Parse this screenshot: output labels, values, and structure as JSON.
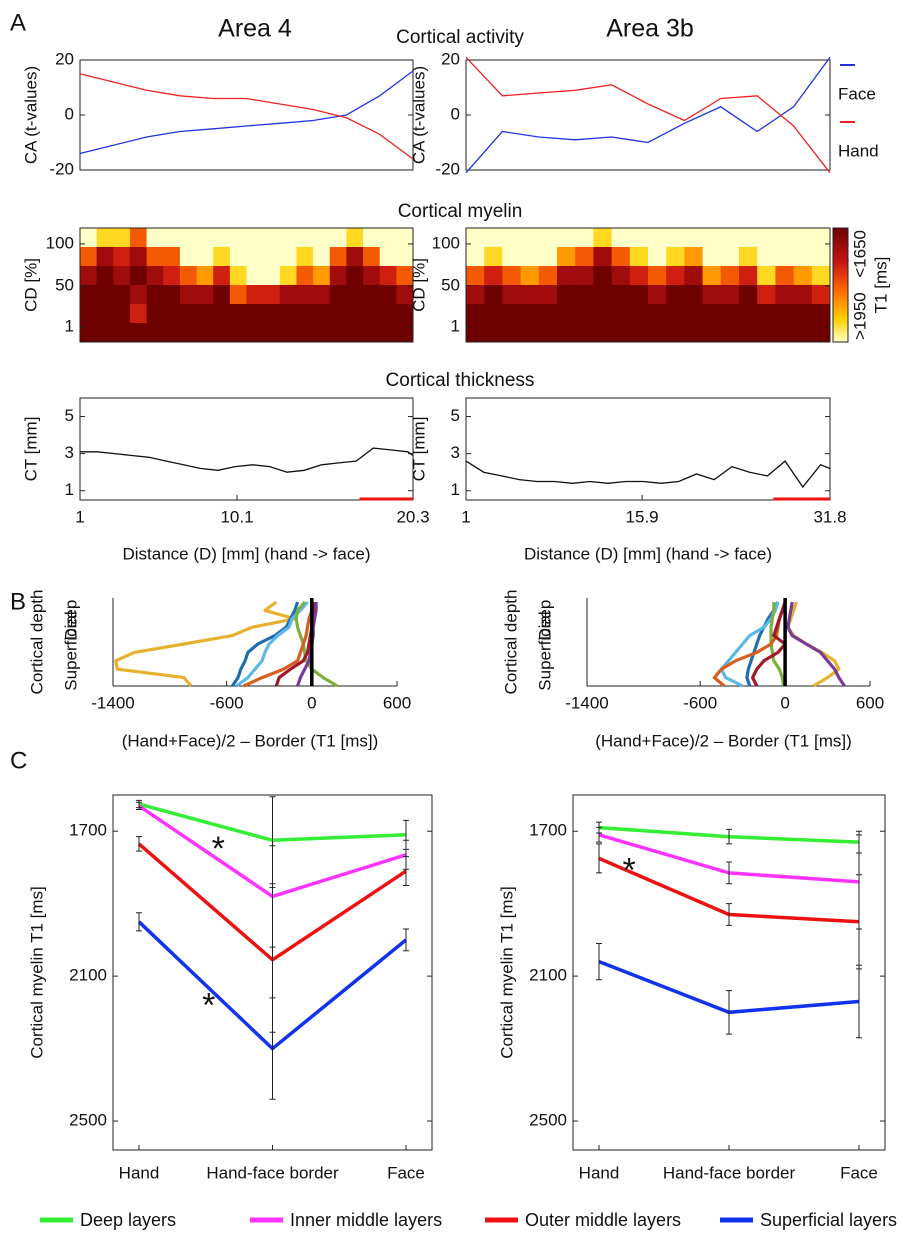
{
  "figure": {
    "panel_labels": [
      "A",
      "B",
      "C"
    ],
    "column_titles": [
      "Area 4",
      "Area 3b"
    ],
    "row_titles": [
      "Cortical activity",
      "Cortical myelin",
      "Cortical thickness"
    ]
  },
  "chart_data": [
    {
      "type": "line",
      "ylabel": "CA (t-values)",
      "ylim": [
        -20,
        20
      ],
      "yticks": [
        -20,
        0,
        20
      ],
      "series": [
        {
          "color": "#2233dd",
          "values": [
            -14,
            -11,
            -8,
            -6,
            -5,
            -4,
            -3,
            -2,
            0,
            7,
            16
          ]
        },
        {
          "color": "#ee2222",
          "values": [
            15,
            12,
            9,
            7,
            6,
            6,
            4,
            2,
            -1,
            -7,
            -16
          ]
        }
      ]
    },
    {
      "type": "line",
      "ylabel": "CA (t-values)",
      "ylim": [
        -20,
        20
      ],
      "yticks": [
        -20,
        0,
        20
      ],
      "legend": "right",
      "series": [
        {
          "name": "Face",
          "color": "#2233dd",
          "values": [
            -21,
            -6,
            -8,
            -9,
            -8,
            -10,
            -3,
            3,
            -6,
            3,
            21
          ]
        },
        {
          "name": "Hand",
          "color": "#ee2222",
          "values": [
            21,
            7,
            8,
            9,
            11,
            4,
            -2,
            6,
            7,
            -4,
            -21
          ]
        }
      ]
    },
    {
      "type": "heatmap",
      "ylabel": "CD [%]",
      "ylim": [
        -17,
        119
      ],
      "yticks": [
        1,
        50,
        100
      ],
      "zlim": [
        1650,
        1950
      ],
      "rows": [
        [
          2000,
          1900,
          1900,
          1800,
          2000,
          2000,
          2000,
          2000,
          2000,
          2000,
          2000,
          2000,
          2000,
          2000,
          2000,
          2000,
          1900,
          2000,
          2000,
          2000
        ],
        [
          1800,
          1700,
          1750,
          1700,
          1800,
          1800,
          2000,
          2000,
          1900,
          2000,
          2000,
          2000,
          2000,
          1900,
          2000,
          1800,
          1700,
          1800,
          1950,
          2000
        ],
        [
          1700,
          1650,
          1700,
          1650,
          1700,
          1750,
          1800,
          1850,
          1750,
          1900,
          1950,
          1950,
          1900,
          1800,
          1850,
          1700,
          1650,
          1700,
          1750,
          1800
        ],
        [
          1650,
          1600,
          1650,
          1700,
          1650,
          1650,
          1700,
          1700,
          1650,
          1800,
          1750,
          1750,
          1700,
          1700,
          1700,
          1650,
          1600,
          1650,
          1650,
          1700
        ],
        [
          1600,
          1600,
          1600,
          1750,
          1600,
          1600,
          1650,
          1650,
          1600,
          1650,
          1650,
          1650,
          1650,
          1650,
          1650,
          1600,
          1600,
          1600,
          1650,
          1650
        ],
        [
          1600,
          1600,
          1600,
          1600,
          1600,
          1600,
          1600,
          1600,
          1600,
          1600,
          1600,
          1600,
          1600,
          1600,
          1600,
          1600,
          1600,
          1600,
          1600,
          1600
        ]
      ]
    },
    {
      "type": "heatmap",
      "ylabel": "CD [%]",
      "ylim": [
        -17,
        119
      ],
      "yticks": [
        1,
        50,
        100
      ],
      "zlim": [
        1650,
        1950
      ],
      "colorbar": {
        "ticks": [
          {
            "value": 1650,
            "label": "<1650"
          },
          {
            "value": 1950,
            "label": ">1950"
          }
        ],
        "label": "T1 [ms]"
      },
      "rows": [
        [
          2000,
          2000,
          2000,
          2000,
          2000,
          2000,
          2000,
          1900,
          2000,
          2000,
          2000,
          2000,
          2000,
          2000,
          2000,
          2000,
          2000,
          2000,
          2000,
          2000
        ],
        [
          2000,
          1900,
          1950,
          2000,
          2000,
          1850,
          1800,
          1700,
          1800,
          1900,
          1950,
          1900,
          1850,
          2000,
          1950,
          1900,
          2000,
          1950,
          1950,
          2000
        ],
        [
          1800,
          1750,
          1800,
          1850,
          1800,
          1700,
          1700,
          1650,
          1700,
          1750,
          1800,
          1750,
          1700,
          1850,
          1800,
          1750,
          1900,
          1800,
          1850,
          1900
        ],
        [
          1700,
          1650,
          1700,
          1700,
          1700,
          1650,
          1650,
          1600,
          1650,
          1650,
          1700,
          1650,
          1650,
          1700,
          1700,
          1650,
          1750,
          1700,
          1700,
          1750
        ],
        [
          1650,
          1600,
          1650,
          1650,
          1600,
          1600,
          1600,
          1600,
          1600,
          1600,
          1650,
          1600,
          1600,
          1650,
          1650,
          1600,
          1650,
          1650,
          1650,
          1650
        ],
        [
          1600,
          1600,
          1600,
          1600,
          1600,
          1600,
          1600,
          1600,
          1600,
          1600,
          1600,
          1600,
          1600,
          1600,
          1600,
          1600,
          1600,
          1600,
          1600,
          1600
        ]
      ]
    },
    {
      "type": "line",
      "ylabel": "CT [mm]",
      "xlabel": "Distance (D) [mm] (hand -> face)",
      "xlim": [
        1,
        20.3
      ],
      "xticks": [
        1,
        10.1,
        20.3
      ],
      "ylim": [
        0.5,
        6
      ],
      "yticks": [
        1,
        3,
        5
      ],
      "highlight": [
        17.2,
        20.3
      ],
      "highlight_color": "#ee1111",
      "x": [
        1,
        2,
        3,
        4,
        5,
        6,
        7,
        8,
        9,
        10,
        11,
        12,
        13,
        14,
        15,
        16,
        17,
        18,
        19,
        20,
        20.3
      ],
      "series": [
        {
          "color": "#111111",
          "values": [
            3.1,
            3.1,
            3.0,
            2.9,
            2.8,
            2.6,
            2.4,
            2.2,
            2.1,
            2.3,
            2.4,
            2.3,
            2.0,
            2.1,
            2.4,
            2.5,
            2.6,
            3.3,
            3.2,
            3.1,
            2.9
          ]
        }
      ]
    },
    {
      "type": "line",
      "ylabel": "CT [mm]",
      "xlabel": "Distance (D) [mm] (hand -> face)",
      "xlim": [
        1,
        31.8
      ],
      "xticks": [
        1,
        15.9,
        31.8
      ],
      "ylim": [
        0.5,
        6
      ],
      "yticks": [
        1,
        3,
        5
      ],
      "highlight": [
        27,
        31.8
      ],
      "highlight_color": "#ee1111",
      "x": [
        1,
        2.5,
        4,
        5.5,
        7,
        8.5,
        10,
        11.5,
        13,
        14.5,
        16,
        17.5,
        19,
        20.5,
        22,
        23.5,
        25,
        26.5,
        28,
        29.5,
        31,
        31.8
      ],
      "series": [
        {
          "color": "#111111",
          "values": [
            2.6,
            2.0,
            1.8,
            1.6,
            1.5,
            1.5,
            1.4,
            1.5,
            1.4,
            1.5,
            1.5,
            1.4,
            1.5,
            1.9,
            1.6,
            2.3,
            2.0,
            1.8,
            2.6,
            1.2,
            2.4,
            2.2
          ]
        }
      ]
    },
    {
      "type": "profile",
      "ylabel": "Cortical depth",
      "depth_labels": [
        "Deep",
        "Superficial"
      ],
      "xlabel": "(Hand+Face)/2 – Border (T1 [ms])",
      "xlim": [
        -1400,
        600
      ],
      "xticks": [
        -1400,
        -600,
        0,
        600
      ],
      "vline": 0,
      "y": [
        0,
        0.1,
        0.2,
        0.3,
        0.4,
        0.5,
        0.6,
        0.7,
        0.8,
        0.9,
        1
      ],
      "series": [
        {
          "color": "#e6b12f",
          "values": [
            -250,
            -330,
            -120,
            -420,
            -560,
            -900,
            -1250,
            -1380,
            -1370,
            -900,
            -850
          ]
        },
        {
          "color": "#1f6fb0",
          "values": [
            -100,
            -120,
            -150,
            -180,
            -260,
            -380,
            -450,
            -470,
            -500,
            -520,
            -560
          ]
        },
        {
          "color": "#5ab8e6",
          "values": [
            -30,
            -80,
            -140,
            -160,
            -240,
            -300,
            -330,
            -350,
            -400,
            -450,
            -530
          ]
        },
        {
          "color": "#7fb03c",
          "values": [
            -50,
            -100,
            -110,
            -100,
            -80,
            -60,
            -50,
            -40,
            0,
            80,
            180
          ]
        },
        {
          "color": "#d45f1f",
          "values": [
            10,
            0,
            -20,
            -30,
            -40,
            -60,
            -80,
            -100,
            -200,
            -350,
            -480
          ]
        },
        {
          "color": "#a0192a",
          "values": [
            20,
            10,
            0,
            0,
            -10,
            -20,
            -30,
            -60,
            -150,
            -230,
            -250
          ]
        },
        {
          "color": "#7a3a9a",
          "values": [
            30,
            30,
            20,
            10,
            10,
            0,
            -10,
            -20,
            -50,
            -80,
            -100
          ]
        }
      ]
    },
    {
      "type": "profile",
      "ylabel": "Cortical depth",
      "depth_labels": [
        "Deep",
        "Superficial"
      ],
      "xlabel": "(Hand+Face)/2 – Border (T1 [ms])",
      "xlim": [
        -1400,
        600
      ],
      "xticks": [
        -1400,
        -600,
        0,
        600
      ],
      "vline": 0,
      "y": [
        0,
        0.1,
        0.2,
        0.3,
        0.4,
        0.5,
        0.6,
        0.7,
        0.8,
        0.9,
        1
      ],
      "series": [
        {
          "color": "#e6b12f",
          "values": [
            80,
            60,
            40,
            20,
            60,
            150,
            260,
            350,
            380,
            300,
            200
          ]
        },
        {
          "color": "#1f6fb0",
          "values": [
            -50,
            -80,
            -120,
            -150,
            -180,
            -200,
            -220,
            -240,
            -260,
            -270,
            -250
          ]
        },
        {
          "color": "#5ab8e6",
          "values": [
            -50,
            -70,
            -100,
            -150,
            -250,
            -300,
            -350,
            -400,
            -450,
            -420,
            -300
          ]
        },
        {
          "color": "#7fb03c",
          "values": [
            -80,
            -80,
            -90,
            -100,
            -100,
            -100,
            -90,
            -80,
            -40,
            -20,
            -10
          ]
        },
        {
          "color": "#d45f1f",
          "values": [
            0,
            -20,
            -40,
            -50,
            -60,
            -100,
            -200,
            -350,
            -450,
            -500,
            -430
          ]
        },
        {
          "color": "#a0192a",
          "values": [
            0,
            -20,
            -40,
            -60,
            -80,
            0,
            -50,
            -150,
            -200,
            -230,
            -200
          ]
        },
        {
          "color": "#7a3a9a",
          "values": [
            50,
            40,
            30,
            20,
            50,
            150,
            250,
            300,
            350,
            380,
            420
          ]
        }
      ]
    },
    {
      "type": "errorline",
      "ylabel": "Cortical myelin T1 [ms]",
      "categories": [
        "Hand",
        "Hand-face border",
        "Face"
      ],
      "ylim": [
        1600,
        2580
      ],
      "inverted": true,
      "yticks": [
        1700,
        2100,
        2500
      ],
      "annotations": [
        "*",
        "*"
      ],
      "legend": "bottom",
      "series": [
        {
          "name": "Deep layers",
          "color": "#33ee33",
          "values": [
            1625,
            1725,
            1710
          ],
          "errors": [
            10,
            120,
            40
          ]
        },
        {
          "name": "Inner middle layers",
          "color": "#ff33ff",
          "values": [
            1630,
            1880,
            1765
          ],
          "errors": [
            10,
            140,
            40
          ]
        },
        {
          "name": "Outer middle layers",
          "color": "#ee1111",
          "values": [
            1735,
            2055,
            1810
          ],
          "errors": [
            20,
            200,
            40
          ]
        },
        {
          "name": "Superficial layers",
          "color": "#1133ee",
          "values": [
            1950,
            2300,
            2000
          ],
          "errors": [
            25,
            140,
            30
          ]
        }
      ]
    },
    {
      "type": "errorline",
      "ylabel": "Cortical myelin T1 [ms]",
      "categories": [
        "Hand",
        "Hand-face border",
        "Face"
      ],
      "ylim": [
        1600,
        2580
      ],
      "inverted": true,
      "yticks": [
        1700,
        2100,
        2500
      ],
      "annotations": [
        "*"
      ],
      "series": [
        {
          "color": "#33ee33",
          "values": [
            1690,
            1715,
            1730
          ],
          "errors": [
            15,
            20,
            30
          ]
        },
        {
          "color": "#ff33ff",
          "values": [
            1710,
            1815,
            1840
          ],
          "errors": [
            20,
            30,
            130
          ]
        },
        {
          "color": "#ee1111",
          "values": [
            1775,
            1930,
            1950
          ],
          "errors": [
            40,
            30,
            130
          ]
        },
        {
          "color": "#1133ee",
          "values": [
            2060,
            2200,
            2170
          ],
          "errors": [
            50,
            60,
            100
          ]
        }
      ]
    }
  ]
}
